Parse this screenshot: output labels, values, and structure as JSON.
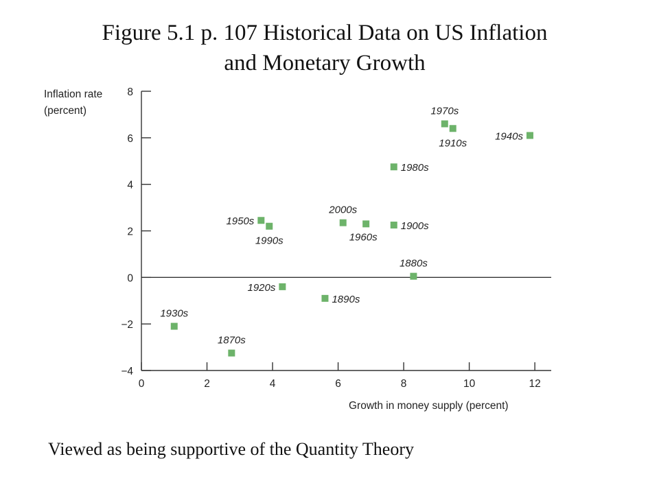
{
  "slide": {
    "title_line1": "Figure 5.1 p. 107 Historical Data on US Inflation",
    "title_line2": "and Monetary Growth",
    "caption": "Viewed as being supportive of the Quantity Theory"
  },
  "colors": {
    "marker": "#6db36a",
    "axis": "#333333",
    "text": "#111111"
  },
  "chart_data": {
    "type": "scatter",
    "ylabel_line1": "Inflation rate",
    "ylabel_line2": "(percent)",
    "xlabel": "Growth in money supply (percent)",
    "xlim": [
      0,
      12.5
    ],
    "ylim": [
      -4,
      8
    ],
    "x_ticks": [
      0,
      2,
      4,
      6,
      8,
      10,
      12
    ],
    "y_ticks": [
      8,
      6,
      4,
      2,
      0,
      -2,
      -4
    ],
    "y_tick_labels": [
      "8",
      "6",
      "4",
      "2",
      "0",
      "−2",
      "−4"
    ],
    "zero_line": true,
    "grid": false,
    "points": [
      {
        "label": "1870s",
        "x": 2.75,
        "y": -3.25,
        "label_pos": "above"
      },
      {
        "label": "1880s",
        "x": 8.3,
        "y": 0.05,
        "label_pos": "above"
      },
      {
        "label": "1890s",
        "x": 5.6,
        "y": -0.9,
        "label_pos": "right"
      },
      {
        "label": "1900s",
        "x": 7.7,
        "y": 2.25,
        "label_pos": "right"
      },
      {
        "label": "1910s",
        "x": 9.5,
        "y": 6.4,
        "label_pos": "below"
      },
      {
        "label": "1920s",
        "x": 4.3,
        "y": -0.4,
        "label_pos": "left"
      },
      {
        "label": "1930s",
        "x": 1.0,
        "y": -2.1,
        "label_pos": "above"
      },
      {
        "label": "1940s",
        "x": 11.85,
        "y": 6.1,
        "label_pos": "left"
      },
      {
        "label": "1950s",
        "x": 3.65,
        "y": 2.45,
        "label_pos": "left"
      },
      {
        "label": "1960s",
        "x": 6.85,
        "y": 2.3,
        "label_pos": "below-left"
      },
      {
        "label": "1970s",
        "x": 9.25,
        "y": 6.6,
        "label_pos": "above"
      },
      {
        "label": "1980s",
        "x": 7.7,
        "y": 4.75,
        "label_pos": "right"
      },
      {
        "label": "1990s",
        "x": 3.9,
        "y": 2.2,
        "label_pos": "below"
      },
      {
        "label": "2000s",
        "x": 6.15,
        "y": 2.35,
        "label_pos": "above"
      }
    ]
  }
}
